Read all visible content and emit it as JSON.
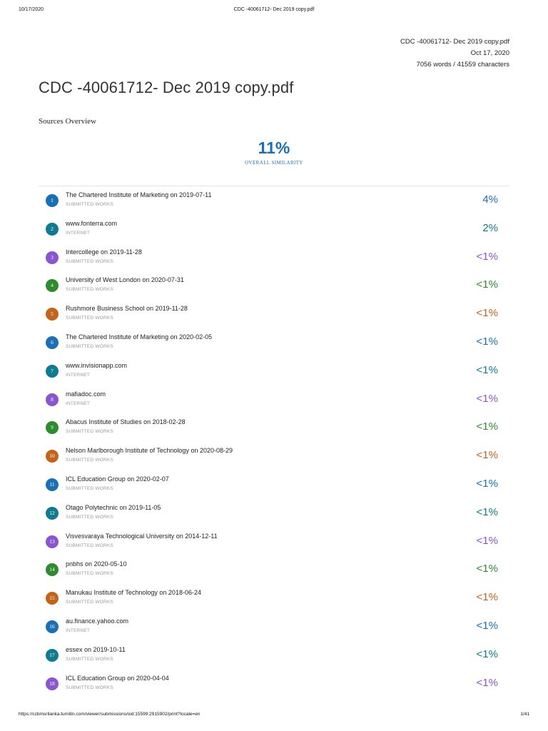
{
  "print_header": {
    "date": "10/17/2020",
    "title": "CDC -40061712- Dec 2019 copy.pdf"
  },
  "meta": {
    "filename": "CDC -40061712- Dec 2019 copy.pdf",
    "date": "Oct 17, 2020",
    "counts": "7056 words / 41559 characters"
  },
  "document_title": "CDC -40061712- Dec 2019 copy.pdf",
  "sources_heading": "Sources Overview",
  "overall": {
    "percent": "11%",
    "label": "OVERALL SIMILARITY"
  },
  "colors": {
    "blue": "#1a6fb5",
    "teal": "#0f7b91",
    "purple": "#8a55cf",
    "green": "#2e8b2e",
    "orange": "#c4641a"
  },
  "sources": [
    {
      "num": "1",
      "name": "The Chartered Institute of Marketing on 2019-07-11",
      "type": "SUBMITTED WORKS",
      "pct": "4%",
      "color": "blue"
    },
    {
      "num": "2",
      "name": "www.fonterra.com",
      "type": "INTERNET",
      "pct": "2%",
      "color": "teal"
    },
    {
      "num": "3",
      "name": "Intercollege on 2019-11-28",
      "type": "SUBMITTED WORKS",
      "pct": "<1%",
      "color": "purple"
    },
    {
      "num": "4",
      "name": "University of West London on 2020-07-31",
      "type": "SUBMITTED WORKS",
      "pct": "<1%",
      "color": "green"
    },
    {
      "num": "5",
      "name": "Rushmore Business School on 2019-11-28",
      "type": "SUBMITTED WORKS",
      "pct": "<1%",
      "color": "orange"
    },
    {
      "num": "6",
      "name": "The Chartered Institute of Marketing on 2020-02-05",
      "type": "SUBMITTED WORKS",
      "pct": "<1%",
      "color": "blue"
    },
    {
      "num": "7",
      "name": "www.invisionapp.com",
      "type": "INTERNET",
      "pct": "<1%",
      "color": "teal"
    },
    {
      "num": "8",
      "name": "mafiadoc.com",
      "type": "INTERNET",
      "pct": "<1%",
      "color": "purple"
    },
    {
      "num": "9",
      "name": "Abacus Institute of Studies on 2018-02-28",
      "type": "SUBMITTED WORKS",
      "pct": "<1%",
      "color": "green"
    },
    {
      "num": "10",
      "name": "Nelson Marlborough Institute of Technology on 2020-08-29",
      "type": "SUBMITTED WORKS",
      "pct": "<1%",
      "color": "orange"
    },
    {
      "num": "11",
      "name": "ICL Education Group on 2020-02-07",
      "type": "SUBMITTED WORKS",
      "pct": "<1%",
      "color": "blue"
    },
    {
      "num": "12",
      "name": "Otago Polytechnic on 2019-11-05",
      "type": "SUBMITTED WORKS",
      "pct": "<1%",
      "color": "teal"
    },
    {
      "num": "13",
      "name": "Visvesvaraya Technological University on 2014-12-11",
      "type": "SUBMITTED WORKS",
      "pct": "<1%",
      "color": "purple"
    },
    {
      "num": "14",
      "name": "pnbhs on 2020-05-10",
      "type": "SUBMITTED WORKS",
      "pct": "<1%",
      "color": "green"
    },
    {
      "num": "15",
      "name": "Manukau Institute of Technology on 2018-06-24",
      "type": "SUBMITTED WORKS",
      "pct": "<1%",
      "color": "orange"
    },
    {
      "num": "16",
      "name": "au.finance.yahoo.com",
      "type": "INTERNET",
      "pct": "<1%",
      "color": "blue"
    },
    {
      "num": "17",
      "name": "essex on 2019-10-11",
      "type": "SUBMITTED WORKS",
      "pct": "<1%",
      "color": "teal"
    },
    {
      "num": "18",
      "name": "ICL Education Group on 2020-04-04",
      "type": "SUBMITTED WORKS",
      "pct": "<1%",
      "color": "purple"
    }
  ],
  "print_footer": {
    "url": "https://ccbmsrilanka.turnitin.com/viewer/submissions/oid:15599:2915902/print?locale=en",
    "page": "1/41"
  }
}
